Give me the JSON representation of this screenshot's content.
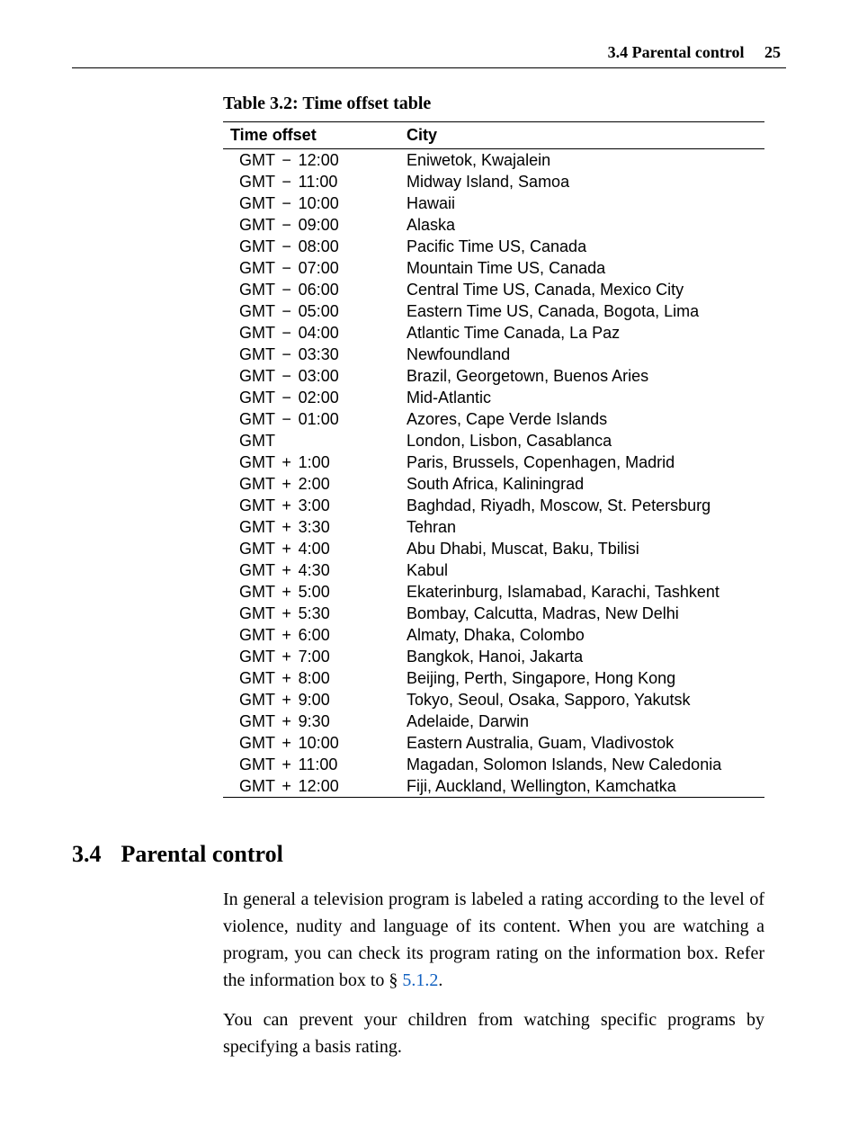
{
  "header": {
    "title": "3.4 Parental control",
    "page_number": "25"
  },
  "table": {
    "caption": "Table 3.2: Time offset table",
    "columns": [
      "Time offset",
      "City"
    ],
    "rows": [
      {
        "base": "GMT",
        "op": "−",
        "val": "12:00",
        "city": "Eniwetok, Kwajalein"
      },
      {
        "base": "GMT",
        "op": "−",
        "val": "11:00",
        "city": "Midway Island, Samoa"
      },
      {
        "base": "GMT",
        "op": "−",
        "val": "10:00",
        "city": "Hawaii"
      },
      {
        "base": "GMT",
        "op": "−",
        "val": "09:00",
        "city": "Alaska"
      },
      {
        "base": "GMT",
        "op": "−",
        "val": "08:00",
        "city": "Pacific Time US, Canada"
      },
      {
        "base": "GMT",
        "op": "−",
        "val": "07:00",
        "city": "Mountain Time US, Canada"
      },
      {
        "base": "GMT",
        "op": "−",
        "val": "06:00",
        "city": "Central Time US, Canada, Mexico City"
      },
      {
        "base": "GMT",
        "op": "−",
        "val": "05:00",
        "city": "Eastern Time US, Canada, Bogota, Lima"
      },
      {
        "base": "GMT",
        "op": "−",
        "val": "04:00",
        "city": "Atlantic Time Canada, La Paz"
      },
      {
        "base": "GMT",
        "op": "−",
        "val": "03:30",
        "city": "Newfoundland"
      },
      {
        "base": "GMT",
        "op": "−",
        "val": "03:00",
        "city": "Brazil, Georgetown, Buenos Aries"
      },
      {
        "base": "GMT",
        "op": "−",
        "val": "02:00",
        "city": "Mid-Atlantic"
      },
      {
        "base": "GMT",
        "op": "−",
        "val": "01:00",
        "city": "Azores, Cape Verde Islands"
      },
      {
        "base": "GMT",
        "op": "",
        "val": "",
        "city": "London, Lisbon, Casablanca"
      },
      {
        "base": "GMT",
        "op": "+",
        "val": "1:00",
        "city": "Paris, Brussels, Copenhagen, Madrid"
      },
      {
        "base": "GMT",
        "op": "+",
        "val": "2:00",
        "city": "South Africa, Kaliningrad"
      },
      {
        "base": "GMT",
        "op": "+",
        "val": "3:00",
        "city": "Baghdad, Riyadh, Moscow, St. Petersburg"
      },
      {
        "base": "GMT",
        "op": "+",
        "val": "3:30",
        "city": "Tehran"
      },
      {
        "base": "GMT",
        "op": "+",
        "val": "4:00",
        "city": "Abu Dhabi, Muscat, Baku, Tbilisi"
      },
      {
        "base": "GMT",
        "op": "+",
        "val": "4:30",
        "city": "Kabul"
      },
      {
        "base": "GMT",
        "op": "+",
        "val": "5:00",
        "city": "Ekaterinburg, Islamabad, Karachi, Tashkent"
      },
      {
        "base": "GMT",
        "op": "+",
        "val": "5:30",
        "city": "Bombay, Calcutta, Madras, New Delhi"
      },
      {
        "base": "GMT",
        "op": "+",
        "val": "6:00",
        "city": "Almaty, Dhaka, Colombo"
      },
      {
        "base": "GMT",
        "op": "+",
        "val": "7:00",
        "city": "Bangkok, Hanoi, Jakarta"
      },
      {
        "base": "GMT",
        "op": "+",
        "val": "8:00",
        "city": "Beijing, Perth, Singapore, Hong Kong"
      },
      {
        "base": "GMT",
        "op": "+",
        "val": "9:00",
        "city": "Tokyo, Seoul, Osaka, Sapporo, Yakutsk"
      },
      {
        "base": "GMT",
        "op": "+",
        "val": "9:30",
        "city": "Adelaide, Darwin"
      },
      {
        "base": "GMT",
        "op": "+",
        "val": "10:00",
        "city": "Eastern Australia, Guam, Vladivostok"
      },
      {
        "base": "GMT",
        "op": "+",
        "val": "11:00",
        "city": "Magadan, Solomon Islands, New Caledonia"
      },
      {
        "base": "GMT",
        "op": "+",
        "val": "12:00",
        "city": "Fiji, Auckland, Wellington, Kamchatka"
      }
    ]
  },
  "section": {
    "number": "3.4",
    "title": "Parental control",
    "para1_a": "In general a television program is labeled a rating according to the level of violence, nudity and language of its content. When you are watching a program, you can check its program rating on the information box. Refer the information box to § ",
    "xref": "5.1.2",
    "para1_b": ".",
    "para2": "You can prevent your children from watching specific programs by specifying a basis rating."
  }
}
